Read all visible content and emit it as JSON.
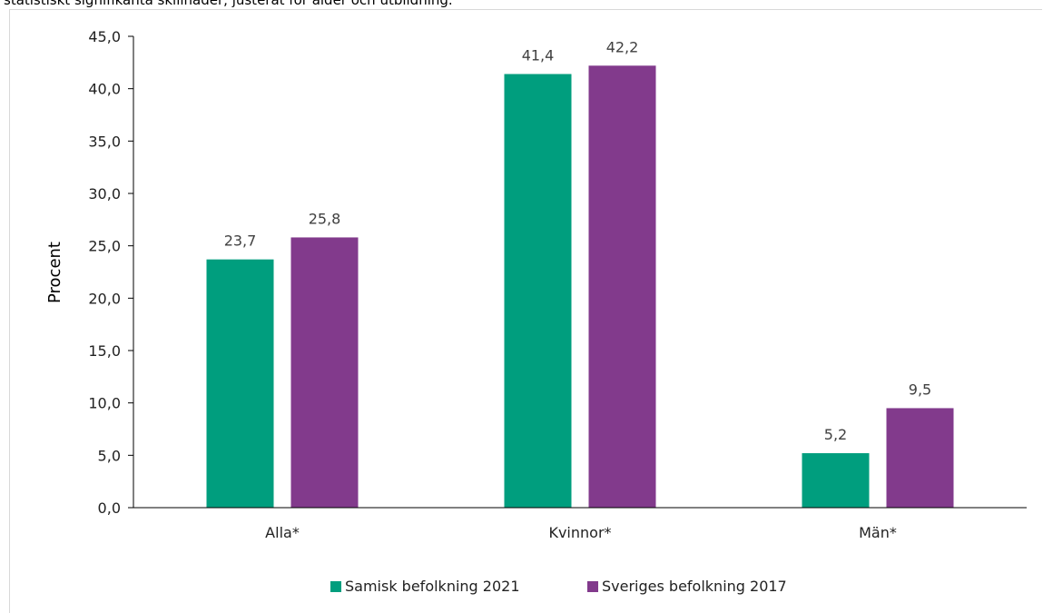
{
  "header": {
    "caption_fragment": "statistiskt signifikanta skillnader, justerat för ålder och utbildning."
  },
  "colors": {
    "series_0": "#009e7e",
    "series_1": "#823a8c",
    "axis": "#000000",
    "frame": "#d9d9d9"
  },
  "chart_data": {
    "type": "bar",
    "title": "",
    "xlabel": "",
    "ylabel": "Procent",
    "ylim": [
      0,
      45
    ],
    "ytick_step": 5,
    "ytick_labels": [
      "0,0",
      "5,0",
      "10,0",
      "15,0",
      "20,0",
      "25,0",
      "30,0",
      "35,0",
      "40,0",
      "45,0"
    ],
    "grid": false,
    "legend_position": "bottom",
    "categories": [
      "Alla*",
      "Kvinnor*",
      "Män*"
    ],
    "series": [
      {
        "name": "Samisk befolkning 2021",
        "values": [
          23.7,
          41.4,
          5.2
        ],
        "labels": [
          "23,7",
          "41,4",
          "5,2"
        ]
      },
      {
        "name": "Sveriges befolkning 2017",
        "values": [
          25.8,
          42.2,
          9.5
        ],
        "labels": [
          "25,8",
          "42,2",
          "9,5"
        ]
      }
    ]
  }
}
